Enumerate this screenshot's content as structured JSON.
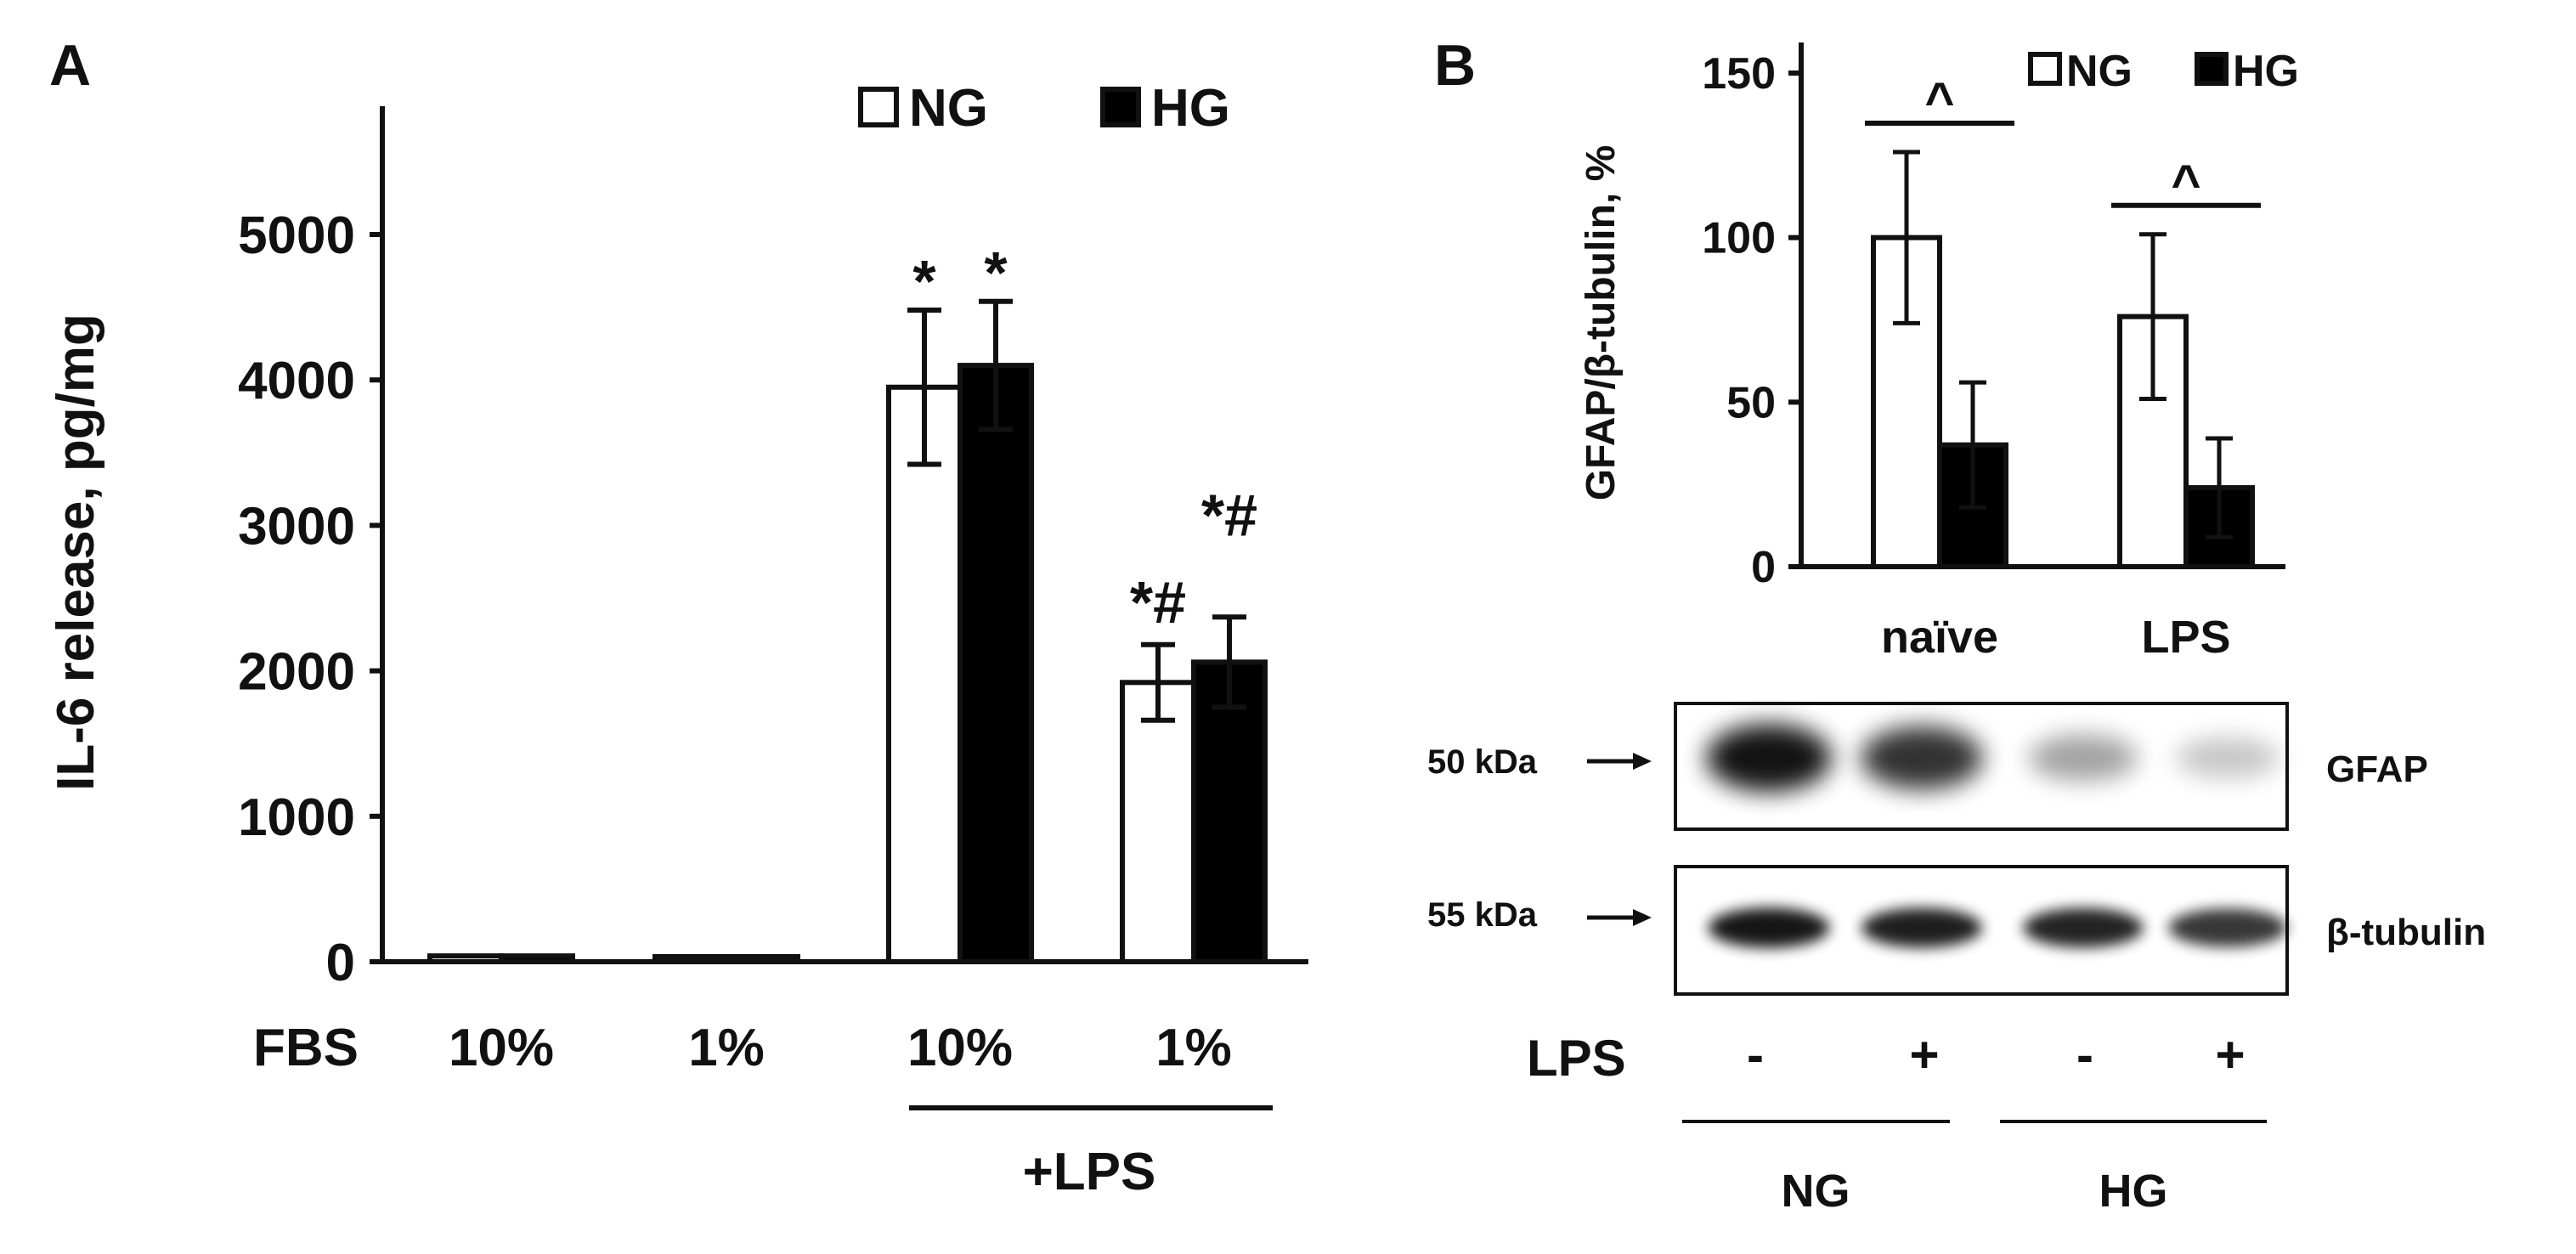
{
  "panels": {
    "a": {
      "label": "A"
    },
    "b": {
      "label": "B"
    }
  },
  "legend": {
    "ng": "NG",
    "hg": "HG"
  },
  "colors": {
    "ng_fill": "#ffffff",
    "hg_fill": "#000000",
    "axis": "#111111"
  },
  "chart_data": [
    {
      "type": "bar",
      "panel": "A",
      "ylabel": "IL-6 release, pg/mg",
      "ylim": [
        0,
        5000
      ],
      "yticks": [
        "0",
        "1000",
        "2000",
        "3000",
        "4000",
        "5000"
      ],
      "x_row_label": "FBS",
      "categories": [
        "10%",
        "1%",
        "10%",
        "1%"
      ],
      "group_bracket_label": "+LPS",
      "group_bracket_spans": [
        2,
        3
      ],
      "series": [
        {
          "name": "NG",
          "values": [
            40,
            35,
            3950,
            1920
          ],
          "errors": [
            0,
            0,
            530,
            260
          ]
        },
        {
          "name": "HG",
          "values": [
            40,
            35,
            4100,
            2060
          ],
          "errors": [
            0,
            0,
            440,
            310
          ]
        }
      ],
      "annotations": [
        {
          "category": 2,
          "series": 0,
          "text": "*"
        },
        {
          "category": 2,
          "series": 1,
          "text": "*"
        },
        {
          "category": 3,
          "series": 0,
          "text": "*#"
        },
        {
          "category": 3,
          "series": 1,
          "text": "*#"
        }
      ],
      "legend_position": "top-right",
      "grid": false
    },
    {
      "type": "bar",
      "panel": "B",
      "ylabel": "GFAP/β-tubulin, %",
      "ylim": [
        0,
        150
      ],
      "yticks": [
        "0",
        "50",
        "100",
        "150"
      ],
      "categories": [
        "naïve",
        "LPS"
      ],
      "series": [
        {
          "name": "NG",
          "values": [
            100,
            76
          ],
          "errors": [
            26,
            25
          ]
        },
        {
          "name": "HG",
          "values": [
            37,
            24
          ],
          "errors": [
            19,
            15
          ]
        }
      ],
      "annotations": [
        {
          "category": 0,
          "text": "^"
        },
        {
          "category": 1,
          "text": "^"
        }
      ],
      "legend_position": "top-right",
      "grid": false
    }
  ],
  "blot": {
    "markers": [
      "50 kDa",
      "55 kDa"
    ],
    "bands": [
      "GFAP",
      "β-tubulin"
    ],
    "gfap_intensity": [
      1.0,
      0.85,
      0.3,
      0.12
    ],
    "tubulin_intensity": [
      0.95,
      0.9,
      0.88,
      0.78
    ],
    "lps_label": "LPS",
    "lps_signs": [
      "-",
      "+",
      "-",
      "+"
    ],
    "groups": [
      "NG",
      "HG"
    ]
  }
}
